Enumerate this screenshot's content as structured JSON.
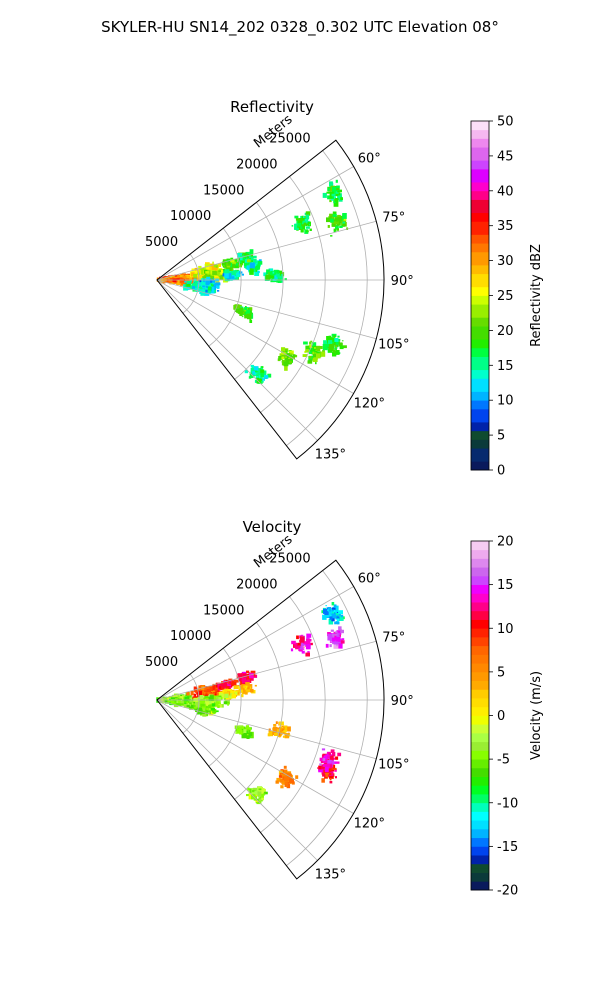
{
  "suptitle": "SKYLER-HU  SN14_202  0328_0.302 UTC Elevation 08°",
  "chart_data": [
    {
      "type": "heatmap",
      "title": "Reflectivity",
      "projection": "polar-sector",
      "radial_label": "Meters",
      "radial_ticks": [
        5000,
        10000,
        15000,
        20000,
        25000
      ],
      "radial_tick_labels": [
        "5000",
        "10000",
        "15000",
        "20000",
        "25000"
      ],
      "rlim": [
        0,
        27000
      ],
      "theta_range_deg": [
        52,
        142
      ],
      "angle_ticks": [
        60,
        75,
        90,
        105,
        120,
        135
      ],
      "angle_tick_labels": [
        "60°",
        "75°",
        "90°",
        "105°",
        "120°",
        "135°"
      ],
      "grid": true,
      "colorbar": {
        "label": "Reflectivity dBZ",
        "range": [
          0,
          50
        ],
        "ticks": [
          0,
          5,
          10,
          15,
          20,
          25,
          30,
          35,
          40,
          45,
          50
        ],
        "tick_labels": [
          "0",
          "5",
          "10",
          "15",
          "20",
          "25",
          "30",
          "35",
          "40",
          "45",
          "50"
        ],
        "colormap": "NWSRef-like"
      },
      "echoes": [
        {
          "theta": 84,
          "r": 2000,
          "value": 33
        },
        {
          "theta": 88,
          "r": 3500,
          "value": 30
        },
        {
          "theta": 92,
          "r": 2500,
          "value": 32
        },
        {
          "theta": 80,
          "r": 6000,
          "value": 26
        },
        {
          "theta": 85,
          "r": 7500,
          "value": 22
        },
        {
          "theta": 78,
          "r": 9000,
          "value": 20
        },
        {
          "theta": 76,
          "r": 11000,
          "value": 18
        },
        {
          "theta": 82,
          "r": 11500,
          "value": 15
        },
        {
          "theta": 86,
          "r": 9000,
          "value": 14
        },
        {
          "theta": 95,
          "r": 6000,
          "value": 12
        },
        {
          "theta": 100,
          "r": 5000,
          "value": 14
        },
        {
          "theta": 88,
          "r": 14000,
          "value": 16
        },
        {
          "theta": 64,
          "r": 23500,
          "value": 18
        },
        {
          "theta": 72,
          "r": 22500,
          "value": 20
        },
        {
          "theta": 69,
          "r": 18500,
          "value": 17
        },
        {
          "theta": 110,
          "r": 11000,
          "value": 19
        },
        {
          "theta": 115,
          "r": 20500,
          "value": 20
        },
        {
          "theta": 121,
          "r": 18000,
          "value": 21
        },
        {
          "theta": 110,
          "r": 22500,
          "value": 18
        },
        {
          "theta": 133,
          "r": 16500,
          "value": 16
        }
      ]
    },
    {
      "type": "heatmap",
      "title": "Velocity",
      "projection": "polar-sector",
      "radial_label": "Meters",
      "radial_ticks": [
        5000,
        10000,
        15000,
        20000,
        25000
      ],
      "radial_tick_labels": [
        "5000",
        "10000",
        "15000",
        "20000",
        "25000"
      ],
      "rlim": [
        0,
        27000
      ],
      "theta_range_deg": [
        52,
        142
      ],
      "angle_ticks": [
        60,
        75,
        90,
        105,
        120,
        135
      ],
      "angle_tick_labels": [
        "60°",
        "75°",
        "90°",
        "105°",
        "120°",
        "135°"
      ],
      "grid": true,
      "colorbar": {
        "label": "Velocity (m/s)",
        "range": [
          -20,
          20
        ],
        "ticks": [
          -20,
          -15,
          -10,
          -5,
          0,
          5,
          10,
          15,
          20
        ],
        "tick_labels": [
          "-20",
          "-15",
          "-10",
          "-5",
          "0",
          "5",
          "10",
          "15",
          "20"
        ],
        "colormap": "NWSVel-like"
      },
      "echoes": [
        {
          "theta": 84,
          "r": 2000,
          "value": -4
        },
        {
          "theta": 90,
          "r": 2500,
          "value": -3
        },
        {
          "theta": 95,
          "r": 3000,
          "value": -5
        },
        {
          "theta": 80,
          "r": 6000,
          "value": 8
        },
        {
          "theta": 78,
          "r": 8500,
          "value": 11
        },
        {
          "theta": 76,
          "r": 11000,
          "value": 12
        },
        {
          "theta": 83,
          "r": 10500,
          "value": 3
        },
        {
          "theta": 86,
          "r": 8500,
          "value": 1
        },
        {
          "theta": 92,
          "r": 6500,
          "value": -4
        },
        {
          "theta": 100,
          "r": 5500,
          "value": -5
        },
        {
          "theta": 64,
          "r": 23500,
          "value": -12
        },
        {
          "theta": 71,
          "r": 22500,
          "value": 15
        },
        {
          "theta": 69,
          "r": 18500,
          "value": 14
        },
        {
          "theta": 110,
          "r": 11000,
          "value": -5
        },
        {
          "theta": 104,
          "r": 15000,
          "value": 4
        },
        {
          "theta": 113,
          "r": 22000,
          "value": 10
        },
        {
          "theta": 121,
          "r": 18000,
          "value": 6
        },
        {
          "theta": 110,
          "r": 21500,
          "value": 13
        },
        {
          "theta": 133,
          "r": 16500,
          "value": -3
        }
      ]
    }
  ]
}
